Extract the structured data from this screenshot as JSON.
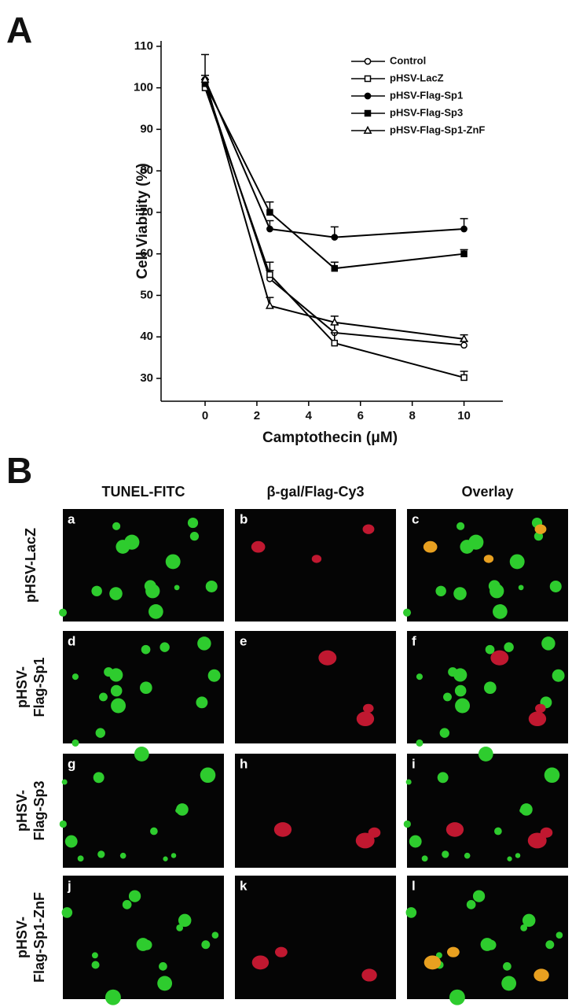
{
  "panel_a_label": "A",
  "chart_data": {
    "type": "line",
    "ylabel": "Cell Viability (%)",
    "xlabel": "Camptothecin (μM)",
    "x": [
      0,
      2.5,
      5,
      10
    ],
    "xlim": [
      -1.7,
      11.5
    ],
    "xticks": [
      0,
      2,
      4,
      6,
      8,
      10
    ],
    "ylim": [
      24.5,
      111.3
    ],
    "yticks": [
      30,
      40,
      50,
      60,
      70,
      80,
      90,
      100,
      110
    ],
    "legend": "upper right",
    "series": [
      {
        "name": "Control",
        "color": "#000000",
        "marker": "circle",
        "filled": false,
        "values": [
          101,
          54,
          41,
          38
        ],
        "errors": [
          7,
          2,
          2,
          1
        ]
      },
      {
        "name": "pHSV-LacZ",
        "color": "#000000",
        "marker": "square",
        "filled": false,
        "values": [
          100,
          55,
          38.5,
          30.2
        ],
        "errors": [
          2,
          3,
          2.5,
          1.5
        ]
      },
      {
        "name": "pHSV-Flag-Sp1",
        "color": "#000000",
        "marker": "circle",
        "filled": true,
        "values": [
          102,
          66,
          64,
          66
        ],
        "errors": [
          1,
          2,
          2.5,
          2.5
        ]
      },
      {
        "name": "pHSV-Flag-Sp3",
        "color": "#000000",
        "marker": "square",
        "filled": true,
        "values": [
          101,
          70,
          56.5,
          60
        ],
        "errors": [
          1,
          2.5,
          1.5,
          1
        ]
      },
      {
        "name": "pHSV-Flag-Sp1-ZnF",
        "color": "#000000",
        "marker": "triangle",
        "filled": false,
        "values": [
          102,
          47.5,
          43.5,
          39.5
        ],
        "errors": [
          1,
          2,
          1.5,
          1
        ]
      }
    ]
  },
  "panel_b": {
    "label": "B",
    "columns": [
      "TUNEL-FITC",
      "β-gal/Flag-Cy3",
      "Overlay"
    ],
    "rows": [
      [
        "pHSV-LacZ"
      ],
      [
        "pHSV-",
        "Flag-Sp1"
      ],
      [
        "pHSV-",
        "Flag-Sp3"
      ],
      [
        "pHSV-",
        "Flag-Sp1-ZnF"
      ]
    ],
    "panels": [
      "a",
      "b",
      "c",
      "d",
      "e",
      "f",
      "g",
      "h",
      "i",
      "j",
      "k",
      "l"
    ]
  }
}
